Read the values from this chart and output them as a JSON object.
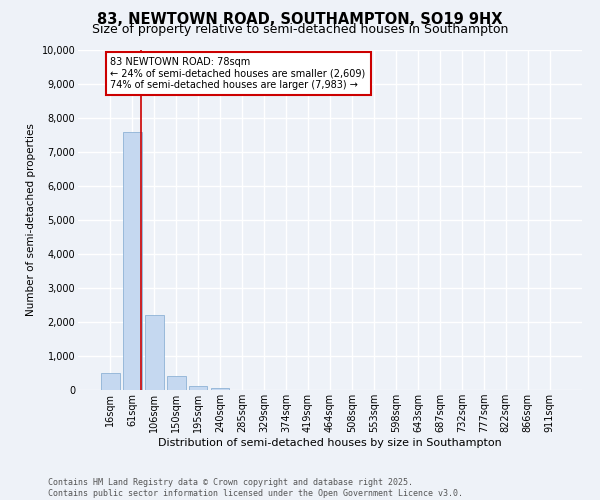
{
  "title_line1": "83, NEWTOWN ROAD, SOUTHAMPTON, SO19 9HX",
  "title_line2": "Size of property relative to semi-detached houses in Southampton",
  "xlabel": "Distribution of semi-detached houses by size in Southampton",
  "ylabel": "Number of semi-detached properties",
  "categories": [
    "16sqm",
    "61sqm",
    "106sqm",
    "150sqm",
    "195sqm",
    "240sqm",
    "285sqm",
    "329sqm",
    "374sqm",
    "419sqm",
    "464sqm",
    "508sqm",
    "553sqm",
    "598sqm",
    "643sqm",
    "687sqm",
    "732sqm",
    "777sqm",
    "822sqm",
    "866sqm",
    "911sqm"
  ],
  "values": [
    500,
    7600,
    2200,
    410,
    110,
    50,
    0,
    0,
    0,
    0,
    0,
    0,
    0,
    0,
    0,
    0,
    0,
    0,
    0,
    0,
    0
  ],
  "bar_color": "#c5d8f0",
  "bar_edge_color": "#7fa8d0",
  "vline_color": "#cc0000",
  "annotation_title": "83 NEWTOWN ROAD: 78sqm",
  "annotation_line1": "← 24% of semi-detached houses are smaller (2,609)",
  "annotation_line2": "74% of semi-detached houses are larger (7,983) →",
  "annotation_box_color": "#ffffff",
  "annotation_box_edge": "#cc0000",
  "ylim": [
    0,
    10000
  ],
  "yticks": [
    0,
    1000,
    2000,
    3000,
    4000,
    5000,
    6000,
    7000,
    8000,
    9000,
    10000
  ],
  "background_color": "#eef2f8",
  "grid_color": "#ffffff",
  "footer": "Contains HM Land Registry data © Crown copyright and database right 2025.\nContains public sector information licensed under the Open Government Licence v3.0.",
  "title_fontsize": 10.5,
  "subtitle_fontsize": 9,
  "axis_label_fontsize": 8,
  "tick_fontsize": 7,
  "footer_fontsize": 6,
  "ylabel_fontsize": 7.5
}
